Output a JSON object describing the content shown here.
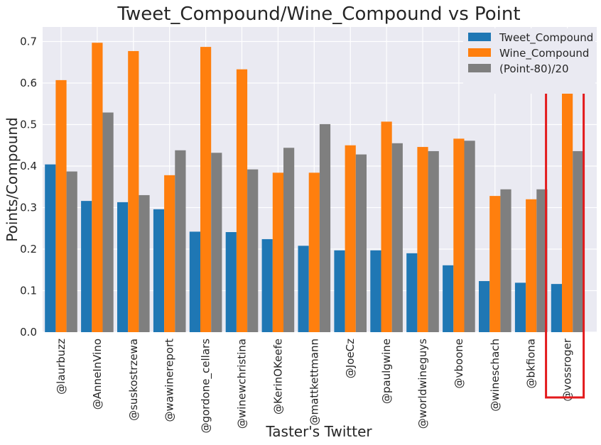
{
  "chart_data": {
    "type": "bar",
    "title": "Tweet_Compound/Wine_Compound vs Point",
    "xlabel": "Taster's Twitter",
    "ylabel": "Points/Compound",
    "ylim": [
      0,
      0.735
    ],
    "yticks": [
      0.0,
      0.1,
      0.2,
      0.3,
      0.4,
      0.5,
      0.6,
      0.7
    ],
    "ytick_labels": [
      "0.0",
      "0.1",
      "0.2",
      "0.3",
      "0.4",
      "0.5",
      "0.6",
      "0.7"
    ],
    "grid": true,
    "legend_position": "top-right",
    "categories": [
      "@laurbuzz",
      "@AnneInVino",
      "@suskostrzewa",
      "@wawinereport",
      "@gordone_cellars",
      "@winewchristina",
      "@KerinOKeefe",
      "@mattkettmann",
      "@JoeCz",
      "@paulgwine",
      "@worldwineguys",
      "@vboone",
      "@wineschach",
      "@bkfiona",
      "@vossroger"
    ],
    "series": [
      {
        "name": "Tweet_Compound",
        "color": "#1f77b4",
        "values": [
          0.404,
          0.316,
          0.313,
          0.296,
          0.242,
          0.241,
          0.224,
          0.208,
          0.197,
          0.197,
          0.19,
          0.161,
          0.123,
          0.119,
          0.116
        ]
      },
      {
        "name": "Wine_Compound",
        "color": "#ff7f0e",
        "values": [
          0.607,
          0.697,
          0.677,
          0.378,
          0.687,
          0.633,
          0.384,
          0.384,
          0.45,
          0.507,
          0.446,
          0.466,
          0.328,
          0.32,
          0.614
        ]
      },
      {
        "name": "(Point-80)/20",
        "color": "#7f7f7f",
        "values": [
          0.387,
          0.529,
          0.33,
          0.438,
          0.432,
          0.392,
          0.444,
          0.501,
          0.428,
          0.455,
          0.436,
          0.461,
          0.344,
          0.344,
          0.436
        ]
      }
    ],
    "highlight": {
      "category": "@vossroger",
      "color": "#e31a1c"
    }
  }
}
